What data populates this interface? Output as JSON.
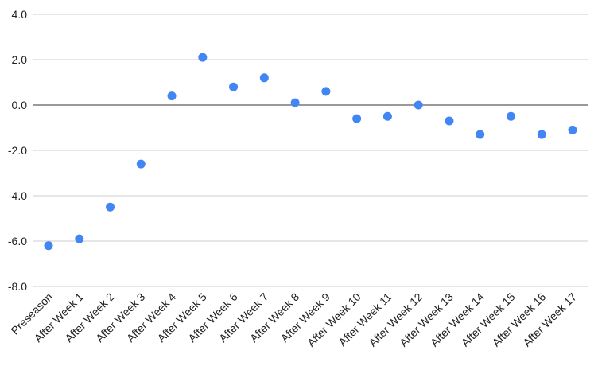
{
  "chart_data": {
    "type": "scatter",
    "title": "",
    "xlabel": "",
    "ylabel": "",
    "categories": [
      "Preseason",
      "After Week 1",
      "After Week 2",
      "After Week 3",
      "After Week 4",
      "After Week 5",
      "After Week 6",
      "After Week 7",
      "After Week 8",
      "After Week 9",
      "After Week 10",
      "After Week 11",
      "After Week 12",
      "After Week 13",
      "After Week 14",
      "After Week 15",
      "After Week 16",
      "After Week 17"
    ],
    "values": [
      -6.2,
      -5.9,
      -4.5,
      -2.6,
      0.4,
      2.1,
      0.8,
      1.2,
      0.1,
      0.6,
      -0.6,
      -0.5,
      0.0,
      -0.7,
      -1.3,
      -0.5,
      -1.3,
      -1.1
    ],
    "ylim": [
      -8,
      4
    ],
    "yticks": [
      "-8.0",
      "-6.0",
      "-4.0",
      "-2.0",
      "0.0",
      "2.0",
      "4.0"
    ],
    "grid": true,
    "legend": "none",
    "colors": {
      "point": "#4285f4",
      "grid": "#cccccc",
      "zero_line": "#333333"
    }
  }
}
